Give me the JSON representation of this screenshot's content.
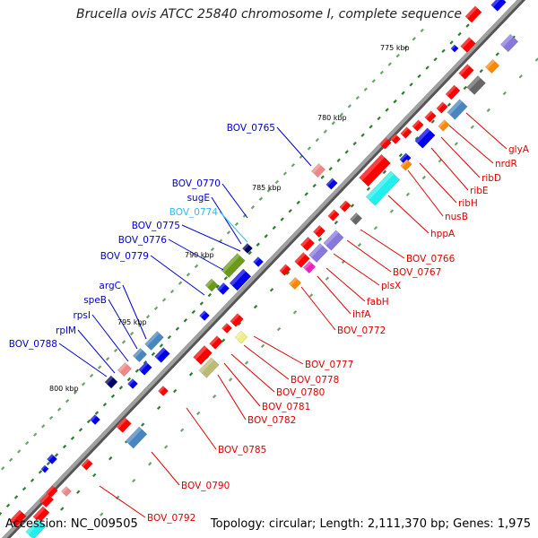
{
  "title": "Brucella ovis ATCC 25840 chromosome I, complete sequence",
  "footer": {
    "accession": "Accession: NC_009505",
    "stats": "Topology: circular; Length: 2,111,370 bp; Genes: 1,975"
  },
  "colors": {
    "backbone": "#8a8a8a",
    "tick": "#2e7d2e",
    "forward_label": "#0000cc",
    "forward_highlight_label": "#33bbee",
    "reverse_label": "#dd0000",
    "blue": "#0000ee",
    "red": "#ff0000",
    "steel": "#4a86be",
    "cyan": "#22eeee",
    "lavender": "#8877dd",
    "orange": "#ff8800",
    "olive": "#6a9a18",
    "khaki": "#bbbb77",
    "pink": "#ee8888",
    "yellow": "#eeee88",
    "magenta": "#ee22bb",
    "navy": "#000066",
    "gray": "#666666"
  },
  "ring_labels": [
    "775 kbp",
    "780 kbp",
    "785 kbp",
    "790 kbp",
    "795 kbp",
    "800 kbp"
  ],
  "forward_genes": [
    "BOV_0765",
    "BOV_0770",
    "sugE",
    "BOV_0774",
    "BOV_0775",
    "BOV_0776",
    "BOV_0779",
    "argC",
    "speB",
    "rpsI",
    "rplM",
    "BOV_0788"
  ],
  "reverse_genes": [
    "glyA",
    "nrdR",
    "ribD",
    "ribE",
    "ribH",
    "nusB",
    "hppA",
    "BOV_0766",
    "BOV_0767",
    "plsX",
    "fabH",
    "ihfA",
    "BOV_0772",
    "BOV_0777",
    "BOV_0778",
    "BOV_0780",
    "BOV_0781",
    "BOV_0782",
    "BOV_0785",
    "BOV_0790",
    "BOV_0792"
  ]
}
